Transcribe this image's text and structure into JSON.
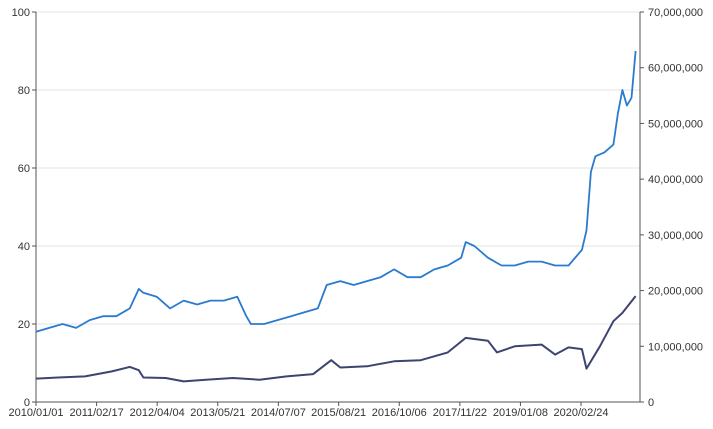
{
  "chart_data": {
    "type": "line",
    "title": "",
    "xlabel": "",
    "ylabel": "",
    "grid": true,
    "legend": "none",
    "x_ticks": [
      "2010/01/01",
      "2011/02/17",
      "2012/04/04",
      "2013/05/21",
      "2014/07/07",
      "2015/08/21",
      "2016/10/06",
      "2017/11/22",
      "2019/01/08",
      "2020/02/24"
    ],
    "y_left": {
      "ylim": [
        0,
        100
      ],
      "ticks": [
        "0",
        "20",
        "40",
        "60",
        "80",
        "100"
      ]
    },
    "y_right": {
      "ylim": [
        0,
        70000000
      ],
      "ticks": [
        "0",
        "10,000,000",
        "20,000,000",
        "30,000,000",
        "40,000,000",
        "50,000,000",
        "60,000,000",
        "70,000,000"
      ]
    },
    "series": [
      {
        "axis": "left",
        "color": "#2a7bd0",
        "points": [
          [
            "2010/01/01",
            18
          ],
          [
            "2010/04/01",
            19
          ],
          [
            "2010/07/01",
            20
          ],
          [
            "2010/10/01",
            19
          ],
          [
            "2011/01/01",
            21
          ],
          [
            "2011/04/01",
            22
          ],
          [
            "2011/07/01",
            22
          ],
          [
            "2011/10/01",
            24
          ],
          [
            "2011/12/01",
            29
          ],
          [
            "2012/01/01",
            28
          ],
          [
            "2012/04/01",
            27
          ],
          [
            "2012/07/01",
            24
          ],
          [
            "2012/10/01",
            26
          ],
          [
            "2013/01/01",
            25
          ],
          [
            "2013/04/01",
            26
          ],
          [
            "2013/07/01",
            26
          ],
          [
            "2013/10/01",
            27
          ],
          [
            "2013/12/01",
            22
          ],
          [
            "2014/01/01",
            20
          ],
          [
            "2014/04/01",
            20
          ],
          [
            "2014/07/01",
            21
          ],
          [
            "2014/10/01",
            22
          ],
          [
            "2015/01/01",
            23
          ],
          [
            "2015/04/01",
            24
          ],
          [
            "2015/06/01",
            30
          ],
          [
            "2015/09/01",
            31
          ],
          [
            "2015/12/01",
            30
          ],
          [
            "2016/03/01",
            31
          ],
          [
            "2016/06/01",
            32
          ],
          [
            "2016/09/01",
            34
          ],
          [
            "2016/12/01",
            32
          ],
          [
            "2017/03/01",
            32
          ],
          [
            "2017/06/01",
            34
          ],
          [
            "2017/09/01",
            35
          ],
          [
            "2017/12/01",
            37
          ],
          [
            "2018/01/01",
            41
          ],
          [
            "2018/03/01",
            40
          ],
          [
            "2018/06/01",
            37
          ],
          [
            "2018/09/01",
            35
          ],
          [
            "2018/12/01",
            35
          ],
          [
            "2019/03/01",
            36
          ],
          [
            "2019/06/01",
            36
          ],
          [
            "2019/09/01",
            35
          ],
          [
            "2019/12/01",
            35
          ],
          [
            "2020/03/01",
            39
          ],
          [
            "2020/04/01",
            44
          ],
          [
            "2020/05/01",
            59
          ],
          [
            "2020/06/01",
            63
          ],
          [
            "2020/08/01",
            64
          ],
          [
            "2020/10/01",
            66
          ],
          [
            "2020/11/01",
            74
          ],
          [
            "2020/12/01",
            80
          ],
          [
            "2021/01/01",
            76
          ],
          [
            "2021/02/01",
            78
          ],
          [
            "2021/03/01",
            90
          ]
        ]
      },
      {
        "axis": "right",
        "color": "#3d4470",
        "points": [
          [
            "2010/01/01",
            4200000
          ],
          [
            "2010/06/01",
            4400000
          ],
          [
            "2010/12/01",
            4600000
          ],
          [
            "2011/06/01",
            5500000
          ],
          [
            "2011/10/01",
            6300000
          ],
          [
            "2011/12/01",
            5700000
          ],
          [
            "2012/01/01",
            4400000
          ],
          [
            "2012/06/01",
            4300000
          ],
          [
            "2012/10/01",
            3700000
          ],
          [
            "2013/03/01",
            4000000
          ],
          [
            "2013/09/01",
            4300000
          ],
          [
            "2014/03/01",
            4000000
          ],
          [
            "2014/09/01",
            4600000
          ],
          [
            "2015/03/01",
            5000000
          ],
          [
            "2015/07/01",
            7500000
          ],
          [
            "2015/09/01",
            6200000
          ],
          [
            "2016/03/01",
            6400000
          ],
          [
            "2016/09/01",
            7300000
          ],
          [
            "2017/03/01",
            7500000
          ],
          [
            "2017/09/01",
            8900000
          ],
          [
            "2018/01/01",
            11500000
          ],
          [
            "2018/06/01",
            11000000
          ],
          [
            "2018/08/01",
            8900000
          ],
          [
            "2018/12/01",
            10000000
          ],
          [
            "2019/06/01",
            10300000
          ],
          [
            "2019/09/01",
            8500000
          ],
          [
            "2019/12/01",
            9800000
          ],
          [
            "2020/03/01",
            9500000
          ],
          [
            "2020/04/01",
            6000000
          ],
          [
            "2020/07/01",
            10000000
          ],
          [
            "2020/10/01",
            14500000
          ],
          [
            "2020/12/01",
            16000000
          ],
          [
            "2021/03/01",
            19000000
          ]
        ]
      }
    ]
  }
}
